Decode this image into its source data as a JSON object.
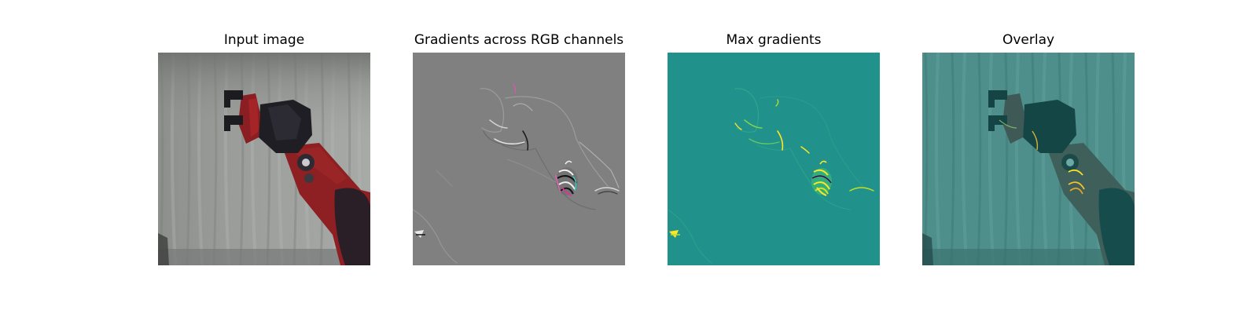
{
  "panels": [
    {
      "title": "Input image",
      "image": "robot-arm-photo"
    },
    {
      "title": "Gradients across RGB channels",
      "image": "rgb-gradient-map"
    },
    {
      "title": "Max gradients",
      "image": "max-gradient-heatmap"
    },
    {
      "title": "Overlay",
      "image": "gradient-overlay-on-photo"
    }
  ],
  "colors": {
    "background": "#ffffff",
    "gradient_gray": "#808080",
    "heatmap_teal": "#21918c",
    "heatmap_yellow": "#fde725",
    "robot_red": "#8e1f22"
  }
}
